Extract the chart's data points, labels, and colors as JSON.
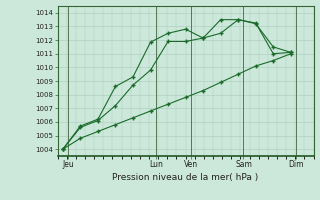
{
  "xlabel": "Pression niveau de la mer( hPa )",
  "bg_color": "#cce8da",
  "plot_bg_color": "#cce8da",
  "grid_color_major": "#a8c8b8",
  "grid_color_minor": "#b8d8c8",
  "line_color": "#1a6b2a",
  "spine_color": "#336633",
  "ylim": [
    1003.5,
    1014.5
  ],
  "yticks": [
    1004,
    1005,
    1006,
    1007,
    1008,
    1009,
    1010,
    1011,
    1012,
    1013,
    1014
  ],
  "xlim": [
    -0.3,
    14.3
  ],
  "day_labels": [
    "Jeu",
    "Lun",
    "Ven",
    "Sam",
    "Dim"
  ],
  "day_positions": [
    0.3,
    5.3,
    7.3,
    10.3,
    13.3
  ],
  "day_vlines": [
    0.3,
    5.3,
    7.3,
    10.3,
    13.3
  ],
  "num_x_steps": 14,
  "line1_x": [
    0,
    1,
    2,
    3,
    4,
    5,
    6,
    7,
    8,
    9,
    10,
    11,
    12,
    13
  ],
  "line1_y": [
    1004.0,
    1004.8,
    1005.3,
    1005.8,
    1006.3,
    1006.8,
    1007.3,
    1007.8,
    1008.3,
    1008.9,
    1009.5,
    1010.1,
    1010.5,
    1011.0
  ],
  "line2_x": [
    0,
    1,
    2,
    3,
    4,
    5,
    6,
    7,
    8,
    9,
    10,
    11,
    12,
    13
  ],
  "line2_y": [
    1004.0,
    1005.6,
    1006.1,
    1007.2,
    1008.7,
    1009.8,
    1011.9,
    1011.9,
    1012.15,
    1012.5,
    1013.5,
    1013.25,
    1011.0,
    1011.1
  ],
  "line3_x": [
    0,
    1,
    2,
    3,
    4,
    5,
    6,
    7,
    8,
    9,
    10,
    11,
    12,
    13
  ],
  "line3_y": [
    1004.0,
    1005.7,
    1006.2,
    1008.6,
    1009.3,
    1011.85,
    1012.5,
    1012.8,
    1012.15,
    1013.5,
    1013.5,
    1013.2,
    1011.5,
    1011.1
  ],
  "figsize": [
    3.2,
    2.0
  ],
  "dpi": 100
}
